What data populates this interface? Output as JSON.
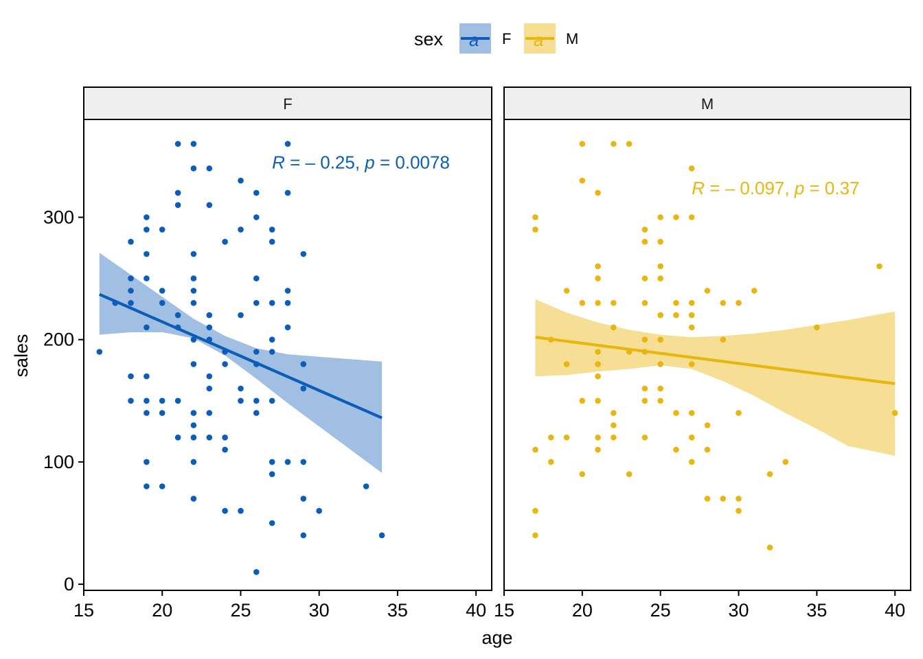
{
  "chart_data": {
    "type": "scatter",
    "x_label": "age",
    "y_label": "sales",
    "x_range": [
      15,
      41
    ],
    "y_range": [
      -5,
      380
    ],
    "x_ticks": [
      15,
      20,
      25,
      30,
      35,
      40
    ],
    "y_ticks": [
      0,
      100,
      200,
      300
    ],
    "x_tick_labels": [
      "15",
      "20",
      "25",
      "30",
      "35",
      "40"
    ],
    "y_tick_labels": [
      "0",
      "100",
      "200",
      "300"
    ],
    "legend": {
      "title": "sex",
      "key_glyph": "a",
      "items": [
        {
          "label": "F",
          "color": "#0C5DB8",
          "fill": "#A0BFE3"
        },
        {
          "label": "M",
          "color": "#E8B610",
          "fill": "#F6DE95"
        }
      ]
    },
    "panels": [
      {
        "strip_label": "F",
        "color": "#0C5DB8",
        "band_fill": "#A0BFE3",
        "stat": {
          "r_sym": "R",
          "r_rest": " = – 0.25, ",
          "p_sym": "p",
          "p_rest": " = 0.0078",
          "x": 27,
          "y": 345
        },
        "fit": {
          "x": [
            16,
            34
          ],
          "y": [
            237,
            136
          ]
        },
        "band": {
          "x": [
            16,
            18,
            20,
            22,
            24,
            26,
            28,
            30,
            32,
            34
          ],
          "lower": [
            204,
            206,
            206,
            201,
            187,
            168,
            148,
            129,
            110,
            91
          ],
          "upper": [
            271,
            253,
            235,
            217,
            203,
            193,
            188,
            186,
            184,
            182
          ]
        },
        "points": [
          [
            16,
            190
          ],
          [
            17,
            230
          ],
          [
            18,
            280
          ],
          [
            18,
            250
          ],
          [
            18,
            240
          ],
          [
            18,
            230
          ],
          [
            18,
            170
          ],
          [
            18,
            150
          ],
          [
            19,
            300
          ],
          [
            19,
            290
          ],
          [
            19,
            270
          ],
          [
            19,
            250
          ],
          [
            19,
            210
          ],
          [
            19,
            170
          ],
          [
            19,
            150
          ],
          [
            19,
            140
          ],
          [
            19,
            100
          ],
          [
            19,
            80
          ],
          [
            20,
            290
          ],
          [
            20,
            240
          ],
          [
            20,
            230
          ],
          [
            20,
            150
          ],
          [
            20,
            140
          ],
          [
            20,
            80
          ],
          [
            21,
            360
          ],
          [
            21,
            320
          ],
          [
            21,
            310
          ],
          [
            21,
            220
          ],
          [
            21,
            210
          ],
          [
            21,
            150
          ],
          [
            21,
            120
          ],
          [
            22,
            360
          ],
          [
            22,
            340
          ],
          [
            22,
            270
          ],
          [
            22,
            250
          ],
          [
            22,
            240
          ],
          [
            22,
            230
          ],
          [
            22,
            200
          ],
          [
            22,
            180
          ],
          [
            22,
            140
          ],
          [
            22,
            130
          ],
          [
            22,
            120
          ],
          [
            22,
            100
          ],
          [
            22,
            70
          ],
          [
            23,
            340
          ],
          [
            23,
            310
          ],
          [
            23,
            220
          ],
          [
            23,
            210
          ],
          [
            23,
            200
          ],
          [
            23,
            170
          ],
          [
            23,
            160
          ],
          [
            23,
            140
          ],
          [
            23,
            120
          ],
          [
            24,
            280
          ],
          [
            24,
            190
          ],
          [
            24,
            180
          ],
          [
            24,
            120
          ],
          [
            24,
            110
          ],
          [
            24,
            60
          ],
          [
            25,
            330
          ],
          [
            25,
            290
          ],
          [
            25,
            220
          ],
          [
            25,
            160
          ],
          [
            25,
            150
          ],
          [
            25,
            60
          ],
          [
            26,
            320
          ],
          [
            26,
            300
          ],
          [
            26,
            250
          ],
          [
            26,
            230
          ],
          [
            26,
            190
          ],
          [
            26,
            180
          ],
          [
            26,
            150
          ],
          [
            26,
            140
          ],
          [
            26,
            10
          ],
          [
            27,
            290
          ],
          [
            27,
            280
          ],
          [
            27,
            230
          ],
          [
            27,
            200
          ],
          [
            27,
            190
          ],
          [
            27,
            150
          ],
          [
            27,
            100
          ],
          [
            27,
            90
          ],
          [
            27,
            50
          ],
          [
            28,
            360
          ],
          [
            28,
            320
          ],
          [
            28,
            240
          ],
          [
            28,
            230
          ],
          [
            28,
            210
          ],
          [
            28,
            100
          ],
          [
            29,
            270
          ],
          [
            29,
            180
          ],
          [
            29,
            160
          ],
          [
            29,
            100
          ],
          [
            29,
            70
          ],
          [
            29,
            40
          ],
          [
            30,
            60
          ],
          [
            33,
            80
          ],
          [
            34,
            40
          ]
        ]
      },
      {
        "strip_label": "M",
        "color": "#E8B610",
        "band_fill": "#F6DE95",
        "stat": {
          "r_sym": "R",
          "r_rest": " = – 0.097, ",
          "p_sym": "p",
          "p_rest": " = 0.37",
          "x": 27,
          "y": 324
        },
        "fit": {
          "x": [
            17,
            40
          ],
          "y": [
            202,
            164
          ]
        },
        "band": {
          "x": [
            17,
            19,
            21,
            23,
            25,
            27,
            29,
            31,
            33,
            35,
            37,
            40
          ],
          "lower": [
            170,
            171,
            174,
            176,
            179,
            176,
            166,
            154,
            140,
            127,
            113,
            105
          ],
          "upper": [
            233,
            222,
            214,
            208,
            204,
            202,
            203,
            205,
            208,
            212,
            216,
            223
          ]
        },
        "points": [
          [
            17,
            300
          ],
          [
            17,
            290
          ],
          [
            17,
            110
          ],
          [
            17,
            60
          ],
          [
            17,
            40
          ],
          [
            18,
            200
          ],
          [
            18,
            120
          ],
          [
            18,
            100
          ],
          [
            19,
            240
          ],
          [
            19,
            180
          ],
          [
            19,
            120
          ],
          [
            20,
            360
          ],
          [
            20,
            330
          ],
          [
            20,
            230
          ],
          [
            20,
            150
          ],
          [
            20,
            90
          ],
          [
            21,
            320
          ],
          [
            21,
            260
          ],
          [
            21,
            250
          ],
          [
            21,
            230
          ],
          [
            21,
            190
          ],
          [
            21,
            180
          ],
          [
            21,
            170
          ],
          [
            21,
            150
          ],
          [
            21,
            120
          ],
          [
            21,
            110
          ],
          [
            22,
            360
          ],
          [
            22,
            230
          ],
          [
            22,
            210
          ],
          [
            22,
            140
          ],
          [
            22,
            130
          ],
          [
            22,
            120
          ],
          [
            23,
            360
          ],
          [
            23,
            190
          ],
          [
            23,
            90
          ],
          [
            24,
            290
          ],
          [
            24,
            280
          ],
          [
            24,
            250
          ],
          [
            24,
            230
          ],
          [
            24,
            200
          ],
          [
            24,
            190
          ],
          [
            24,
            160
          ],
          [
            24,
            150
          ],
          [
            24,
            120
          ],
          [
            25,
            300
          ],
          [
            25,
            280
          ],
          [
            25,
            260
          ],
          [
            25,
            250
          ],
          [
            25,
            220
          ],
          [
            25,
            200
          ],
          [
            25,
            180
          ],
          [
            25,
            160
          ],
          [
            25,
            150
          ],
          [
            26,
            300
          ],
          [
            26,
            230
          ],
          [
            26,
            220
          ],
          [
            26,
            140
          ],
          [
            26,
            110
          ],
          [
            27,
            340
          ],
          [
            27,
            300
          ],
          [
            27,
            230
          ],
          [
            27,
            220
          ],
          [
            27,
            210
          ],
          [
            27,
            180
          ],
          [
            27,
            140
          ],
          [
            27,
            120
          ],
          [
            27,
            100
          ],
          [
            28,
            240
          ],
          [
            28,
            130
          ],
          [
            28,
            110
          ],
          [
            28,
            70
          ],
          [
            29,
            230
          ],
          [
            29,
            200
          ],
          [
            29,
            70
          ],
          [
            30,
            230
          ],
          [
            30,
            140
          ],
          [
            30,
            70
          ],
          [
            30,
            60
          ],
          [
            31,
            240
          ],
          [
            32,
            90
          ],
          [
            32,
            30
          ],
          [
            33,
            100
          ],
          [
            35,
            210
          ],
          [
            39,
            260
          ],
          [
            40,
            140
          ]
        ]
      }
    ]
  }
}
